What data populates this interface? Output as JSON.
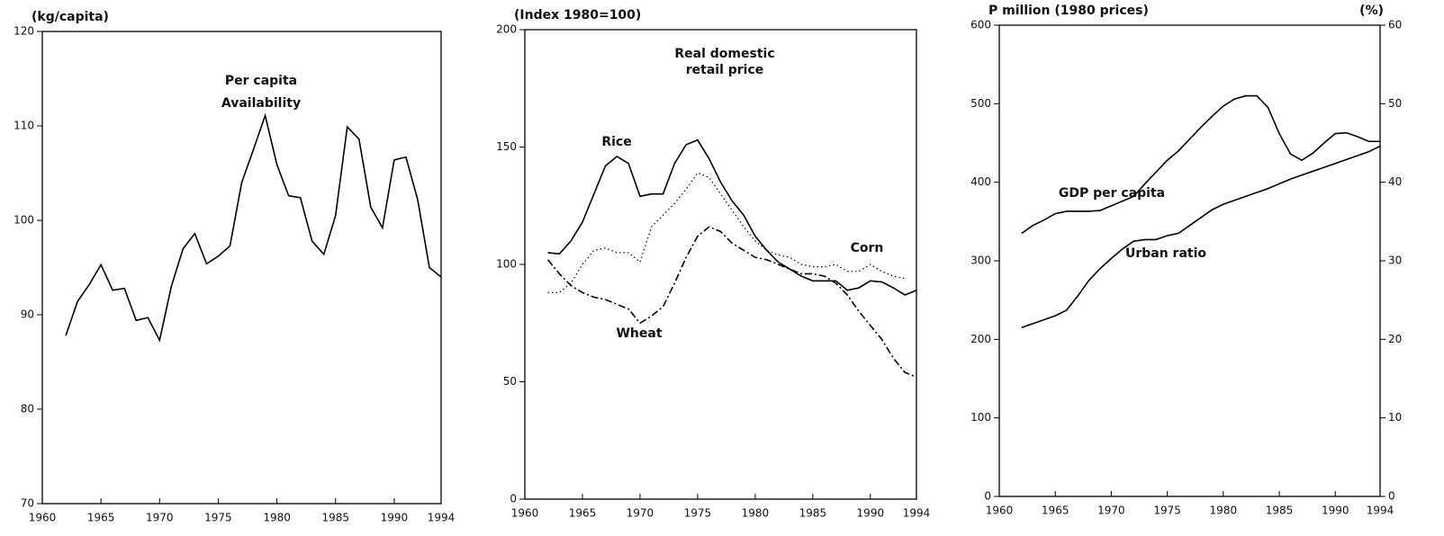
{
  "chart_data": [
    {
      "type": "line",
      "ylabel": "(kg/capita)",
      "annotation": [
        "Per capita",
        "Availability"
      ],
      "xlim": [
        1960,
        1994
      ],
      "xticks": [
        1960,
        1965,
        1970,
        1975,
        1980,
        1985,
        1990,
        1994
      ],
      "ylim": [
        70,
        120
      ],
      "yticks": [
        70,
        80,
        90,
        100,
        110,
        120
      ],
      "x": [
        1962,
        1963,
        1964,
        1965,
        1966,
        1967,
        1968,
        1969,
        1970,
        1971,
        1972,
        1973,
        1974,
        1975,
        1976,
        1977,
        1978,
        1979,
        1980,
        1981,
        1982,
        1983,
        1984,
        1985,
        1986,
        1987,
        1988,
        1989,
        1990,
        1991,
        1992,
        1993,
        1994
      ],
      "series": [
        {
          "color": "#000000",
          "line_style": "solid",
          "values": [
            87.8,
            91.4,
            93.2,
            95.3,
            92.6,
            92.8,
            89.4,
            89.7,
            87.3,
            93,
            97,
            98.6,
            95.4,
            96.2,
            97.3,
            104,
            107.5,
            111.1,
            105.9,
            102.6,
            102.4,
            97.8,
            96.4,
            100.5,
            109.9,
            108.6,
            101.4,
            99.2,
            106.4,
            106.7,
            102.2,
            95,
            94
          ]
        }
      ]
    },
    {
      "type": "line",
      "ylabel": "(Index 1980=100)",
      "annotation": [
        "Real domestic",
        "retail price"
      ],
      "xlim": [
        1960,
        1994
      ],
      "xticks": [
        1960,
        1965,
        1970,
        1975,
        1980,
        1985,
        1990,
        1994
      ],
      "ylim": [
        0,
        200
      ],
      "yticks": [
        0,
        50,
        100,
        150,
        200
      ],
      "x": [
        1962,
        1963,
        1964,
        1965,
        1966,
        1967,
        1968,
        1969,
        1970,
        1971,
        1972,
        1973,
        1974,
        1975,
        1976,
        1977,
        1978,
        1979,
        1980,
        1981,
        1982,
        1983,
        1984,
        1985,
        1986,
        1987,
        1988,
        1989,
        1990,
        1991,
        1992,
        1993,
        1994
      ],
      "series": [
        {
          "name": "Rice",
          "color": "#000000",
          "line_style": "solid",
          "values": [
            105,
            104.5,
            110,
            118,
            130,
            142,
            146,
            143,
            129,
            130,
            130,
            143,
            151,
            153,
            145,
            135,
            127,
            121,
            112,
            106,
            101,
            98,
            95,
            93,
            93,
            93,
            89,
            90,
            93,
            92.5,
            90,
            87,
            89
          ]
        },
        {
          "name": "Wheat",
          "color": "#000000",
          "line_style": "dashdot",
          "values": [
            102,
            96,
            91,
            88,
            86,
            85,
            83,
            81,
            75,
            78,
            82,
            92,
            103,
            112,
            116,
            114,
            109,
            106,
            103,
            102,
            100,
            98,
            96,
            96,
            95,
            92,
            87,
            80,
            74,
            68,
            60,
            54,
            52
          ]
        },
        {
          "name": "Corn",
          "color": "#000000",
          "line_style": "dotted",
          "values": [
            88,
            88,
            92,
            100,
            106,
            107,
            105,
            105,
            101,
            116,
            121,
            126,
            132,
            139,
            137,
            130,
            123,
            116,
            110,
            106,
            104,
            103,
            100,
            99,
            99,
            100,
            97,
            97,
            100,
            97,
            95,
            94,
            null
          ]
        }
      ]
    },
    {
      "type": "line",
      "ylabel": "P million (1980 prices)",
      "y2label": "(%)",
      "xlim": [
        1960,
        1994
      ],
      "xticks": [
        1960,
        1965,
        1970,
        1975,
        1980,
        1985,
        1990,
        1994
      ],
      "ylim": [
        0,
        600
      ],
      "yticks": [
        0,
        100,
        200,
        300,
        400,
        500,
        600
      ],
      "y2lim": [
        0,
        60
      ],
      "y2ticks": [
        0,
        10,
        20,
        30,
        40,
        50,
        60
      ],
      "x": [
        1962,
        1963,
        1964,
        1965,
        1966,
        1967,
        1968,
        1969,
        1970,
        1971,
        1972,
        1973,
        1974,
        1975,
        1976,
        1977,
        1978,
        1979,
        1980,
        1981,
        1982,
        1983,
        1984,
        1985,
        1986,
        1987,
        1988,
        1989,
        1990,
        1991,
        1992,
        1993,
        1994
      ],
      "series": [
        {
          "name": "GDP per capita",
          "color": "#000000",
          "line_style": "solid",
          "values": [
            335,
            345,
            352,
            360,
            363,
            363,
            363,
            364,
            370,
            376,
            382,
            398,
            413,
            428,
            440,
            455,
            470,
            484,
            497,
            506,
            510,
            510,
            495,
            462,
            436,
            428,
            437,
            450,
            462,
            463,
            458,
            452,
            452
          ]
        },
        {
          "name": "Urban ratio",
          "color": "#000000",
          "line_style": "solid",
          "axis": "y2",
          "values": [
            21.5,
            22,
            22.5,
            23,
            23.7,
            25.5,
            27.5,
            29,
            30.3,
            31.5,
            32.5,
            32.7,
            32.7,
            33.2,
            33.5,
            34.5,
            35.5,
            36.5,
            37.2,
            37.7,
            38.2,
            38.7,
            39.2,
            39.8,
            40.4,
            40.9,
            41.4,
            41.9,
            42.4,
            42.9,
            43.4,
            43.9,
            44.6
          ]
        }
      ]
    }
  ]
}
